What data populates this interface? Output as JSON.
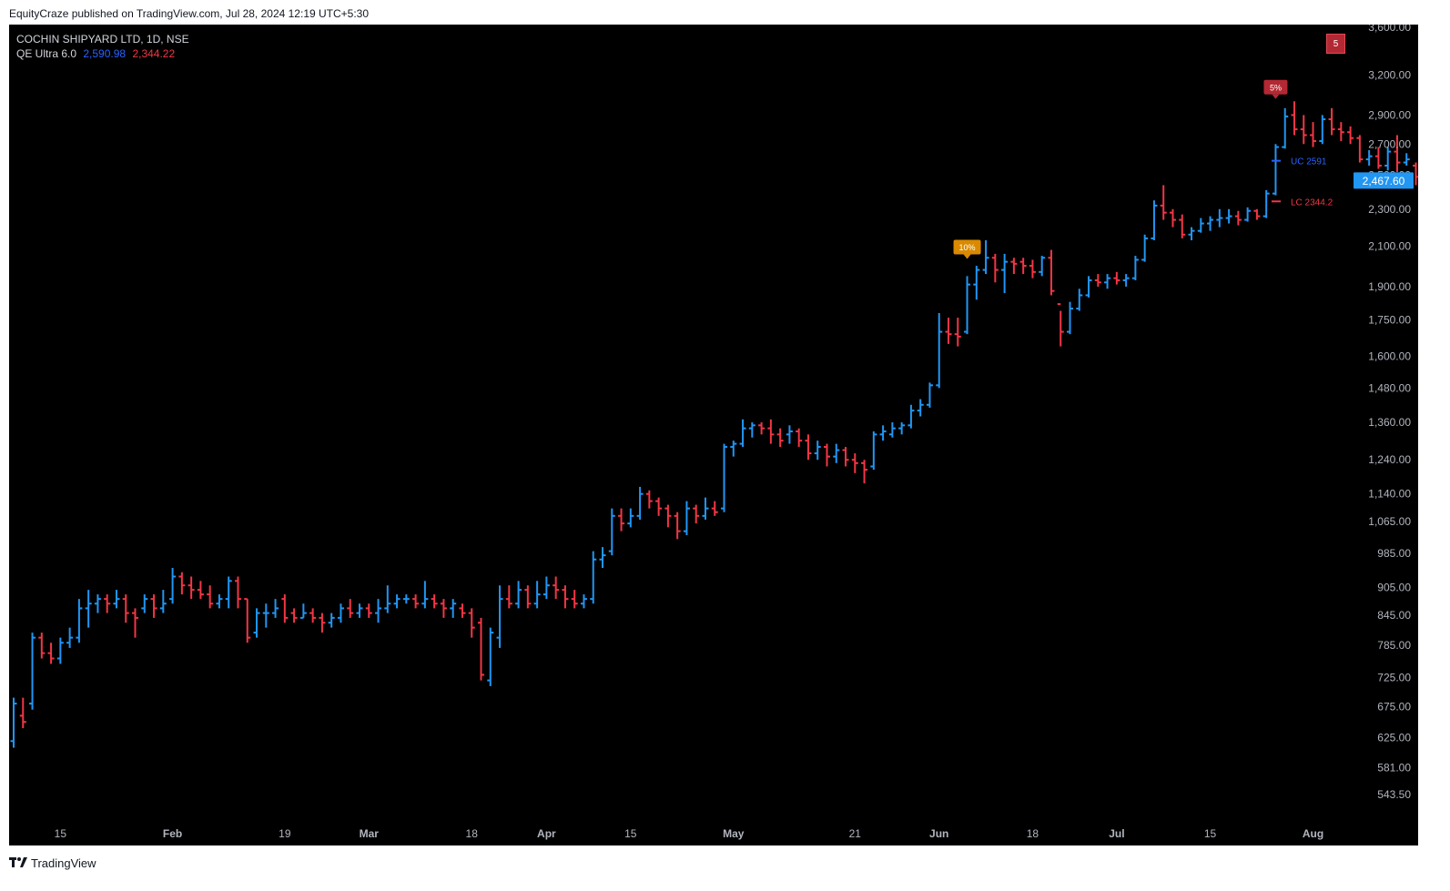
{
  "header": {
    "published_text": "EquityCraze published on TradingView.com, Jul 28, 2024 12:19 UTC+5:30"
  },
  "legend": {
    "symbol_line": "COCHIN SHIPYARD LTD, 1D, NSE",
    "indicator_name": "QE Ultra 6.0",
    "indicator_uc_value": "2,590.98",
    "indicator_lc_value": "2,344.22"
  },
  "alert_badge": "5",
  "footer": {
    "brand": "TradingView"
  },
  "colors": {
    "up": "#2196f3",
    "down": "#f23645",
    "background": "#000000",
    "axis_text": "#b2b5be",
    "last_price_bg": "#2196f3",
    "uc_line": "#2962ff",
    "lc_line": "#f23645",
    "tag_10pct": "#d98a00",
    "tag_5pct": "#b22833"
  },
  "chart_data": {
    "type": "ohlc",
    "title": "COCHIN SHIPYARD LTD, 1D, NSE",
    "y_scale": "log",
    "ylim": [
      520,
      3700
    ],
    "y_ticks": [
      543.5,
      581,
      625,
      675,
      725,
      785,
      845,
      905,
      985,
      1065,
      1140,
      1240,
      1360,
      1480,
      1600,
      1750,
      1900,
      2100,
      2300,
      2500,
      2700,
      2900,
      3200,
      3600
    ],
    "y_tick_labels": [
      "543.50",
      "581.00",
      "625.00",
      "675.00",
      "725.00",
      "785.00",
      "845.00",
      "905.00",
      "985.00",
      "1,065.00",
      "1,140.00",
      "1,240.00",
      "1,360.00",
      "1,480.00",
      "1,600.00",
      "1,750.00",
      "1,900.00",
      "2,100.00",
      "2,300.00",
      "2,500.00",
      "2,700.00",
      "2,900.00",
      "3,200.00",
      "3,600.00"
    ],
    "x_ticks": [
      {
        "bar": 5,
        "label": "15"
      },
      {
        "bar": 17,
        "label": "Feb"
      },
      {
        "bar": 29,
        "label": "19"
      },
      {
        "bar": 38,
        "label": "Mar"
      },
      {
        "bar": 49,
        "label": "18"
      },
      {
        "bar": 57,
        "label": "Apr"
      },
      {
        "bar": 66,
        "label": "15"
      },
      {
        "bar": 77,
        "label": "May"
      },
      {
        "bar": 90,
        "label": "21"
      },
      {
        "bar": 99,
        "label": "Jun"
      },
      {
        "bar": 109,
        "label": "18"
      },
      {
        "bar": 118,
        "label": "Jul"
      },
      {
        "bar": 128,
        "label": "15"
      },
      {
        "bar": 139,
        "label": "Aug"
      }
    ],
    "bars": [
      [
        620,
        690,
        610,
        680
      ],
      [
        660,
        690,
        640,
        650
      ],
      [
        680,
        810,
        670,
        800
      ],
      [
        800,
        810,
        760,
        770
      ],
      [
        770,
        790,
        750,
        760
      ],
      [
        760,
        800,
        750,
        790
      ],
      [
        790,
        820,
        780,
        800
      ],
      [
        800,
        880,
        790,
        860
      ],
      [
        860,
        900,
        820,
        870
      ],
      [
        870,
        890,
        850,
        880
      ],
      [
        880,
        890,
        850,
        870
      ],
      [
        870,
        900,
        860,
        880
      ],
      [
        880,
        890,
        830,
        850
      ],
      [
        850,
        860,
        800,
        840
      ],
      [
        860,
        890,
        850,
        880
      ],
      [
        880,
        890,
        840,
        860
      ],
      [
        860,
        900,
        850,
        870
      ],
      [
        880,
        950,
        870,
        930
      ],
      [
        930,
        940,
        890,
        910
      ],
      [
        910,
        930,
        880,
        900
      ],
      [
        900,
        920,
        880,
        890
      ],
      [
        890,
        910,
        860,
        870
      ],
      [
        870,
        890,
        860,
        880
      ],
      [
        880,
        930,
        860,
        920
      ],
      [
        920,
        930,
        860,
        880
      ],
      [
        880,
        880,
        790,
        800
      ],
      [
        810,
        860,
        800,
        850
      ],
      [
        850,
        870,
        820,
        850
      ],
      [
        850,
        880,
        840,
        860
      ],
      [
        880,
        890,
        830,
        840
      ],
      [
        850,
        860,
        830,
        840
      ],
      [
        840,
        870,
        840,
        850
      ],
      [
        850,
        860,
        830,
        840
      ],
      [
        840,
        850,
        810,
        830
      ],
      [
        830,
        850,
        820,
        840
      ],
      [
        840,
        870,
        830,
        860
      ],
      [
        860,
        880,
        840,
        850
      ],
      [
        850,
        870,
        840,
        860
      ],
      [
        860,
        870,
        840,
        850
      ],
      [
        850,
        880,
        830,
        860
      ],
      [
        860,
        910,
        850,
        870
      ],
      [
        870,
        890,
        860,
        880
      ],
      [
        880,
        890,
        870,
        880
      ],
      [
        880,
        890,
        860,
        870
      ],
      [
        870,
        920,
        860,
        880
      ],
      [
        880,
        890,
        860,
        870
      ],
      [
        870,
        880,
        840,
        860
      ],
      [
        860,
        880,
        840,
        870
      ],
      [
        860,
        870,
        840,
        850
      ],
      [
        850,
        860,
        800,
        820
      ],
      [
        830,
        840,
        720,
        730
      ],
      [
        720,
        820,
        710,
        810
      ],
      [
        800,
        910,
        780,
        880
      ],
      [
        880,
        910,
        860,
        870
      ],
      [
        870,
        920,
        860,
        900
      ],
      [
        900,
        910,
        860,
        870
      ],
      [
        870,
        920,
        860,
        890
      ],
      [
        890,
        930,
        880,
        910
      ],
      [
        910,
        930,
        880,
        900
      ],
      [
        900,
        910,
        860,
        880
      ]
    ],
    "bars_2": [
      [
        880,
        900,
        860,
        870
      ],
      [
        870,
        890,
        860,
        880
      ],
      [
        880,
        990,
        870,
        970
      ],
      [
        970,
        1000,
        950,
        980
      ],
      [
        990,
        1100,
        980,
        1080
      ],
      [
        1080,
        1100,
        1040,
        1060
      ],
      [
        1060,
        1100,
        1050,
        1080
      ],
      [
        1080,
        1160,
        1070,
        1140
      ],
      [
        1140,
        1150,
        1100,
        1120
      ],
      [
        1120,
        1130,
        1080,
        1100
      ],
      [
        1100,
        1110,
        1050,
        1080
      ],
      [
        1080,
        1090,
        1020,
        1040
      ],
      [
        1040,
        1120,
        1030,
        1100
      ],
      [
        1100,
        1110,
        1060,
        1080
      ],
      [
        1080,
        1130,
        1070,
        1100
      ],
      [
        1100,
        1120,
        1080,
        1090
      ],
      [
        1100,
        1290,
        1090,
        1280
      ],
      [
        1280,
        1300,
        1250,
        1290
      ],
      [
        1290,
        1370,
        1280,
        1340
      ],
      [
        1340,
        1360,
        1310,
        1350
      ],
      [
        1350,
        1360,
        1320,
        1340
      ],
      [
        1340,
        1370,
        1290,
        1320
      ],
      [
        1320,
        1340,
        1280,
        1300
      ],
      [
        1320,
        1350,
        1290,
        1330
      ],
      [
        1330,
        1340,
        1280,
        1300
      ],
      [
        1300,
        1320,
        1240,
        1260
      ],
      [
        1260,
        1300,
        1240,
        1280
      ],
      [
        1280,
        1290,
        1220,
        1250
      ],
      [
        1250,
        1290,
        1230,
        1270
      ],
      [
        1270,
        1280,
        1220,
        1240
      ],
      [
        1240,
        1260,
        1200,
        1230
      ],
      [
        1230,
        1240,
        1170,
        1210
      ],
      [
        1220,
        1330,
        1210,
        1320
      ],
      [
        1320,
        1350,
        1300,
        1330
      ],
      [
        1320,
        1360,
        1310,
        1340
      ],
      [
        1340,
        1360,
        1320,
        1350
      ],
      [
        1350,
        1420,
        1340,
        1400
      ],
      [
        1400,
        1440,
        1380,
        1420
      ],
      [
        1420,
        1500,
        1410,
        1490
      ],
      [
        1490,
        1780,
        1480,
        1700
      ],
      [
        1700,
        1760,
        1650,
        1690
      ],
      [
        1690,
        1760,
        1640,
        1680
      ],
      [
        1700,
        1950,
        1690,
        1910
      ],
      [
        1910,
        2000,
        1840,
        1980
      ],
      [
        1980,
        2130,
        1960,
        2040
      ],
      [
        2040,
        2060,
        1920,
        1980
      ],
      [
        1980,
        2060,
        1870,
        2020
      ],
      [
        2020,
        2040,
        1960,
        2010
      ],
      [
        2020,
        2040,
        1960,
        2000
      ],
      [
        2000,
        2030,
        1940,
        1970
      ],
      [
        1970,
        2050,
        1950,
        2040
      ],
      [
        2040,
        2080,
        1860,
        1880
      ],
      [
        1820,
        1790,
        1640,
        1700
      ],
      [
        1700,
        1830,
        1690,
        1800
      ],
      [
        1800,
        1890,
        1790,
        1860
      ],
      [
        1860,
        1950,
        1850,
        1930
      ],
      [
        1930,
        1960,
        1900,
        1920
      ],
      [
        1920,
        1960,
        1890,
        1940
      ],
      [
        1940,
        1970,
        1910,
        1930
      ],
      [
        1930,
        1960,
        1900,
        1940
      ]
    ],
    "bars_3": [
      [
        1940,
        2050,
        1930,
        2030
      ],
      [
        2030,
        2160,
        2020,
        2140
      ],
      [
        2140,
        2350,
        2130,
        2320
      ],
      [
        2320,
        2440,
        2240,
        2280
      ],
      [
        2280,
        2300,
        2200,
        2240
      ],
      [
        2240,
        2270,
        2140,
        2160
      ],
      [
        2160,
        2200,
        2130,
        2180
      ],
      [
        2180,
        2250,
        2170,
        2220
      ],
      [
        2220,
        2260,
        2180,
        2240
      ],
      [
        2240,
        2300,
        2200,
        2250
      ],
      [
        2250,
        2300,
        2220,
        2260
      ],
      [
        2260,
        2290,
        2210,
        2240
      ],
      [
        2240,
        2310,
        2230,
        2290
      ],
      [
        2290,
        2300,
        2240,
        2260
      ],
      [
        2260,
        2410,
        2250,
        2390
      ],
      [
        2390,
        2700,
        2380,
        2680
      ],
      [
        2680,
        2950,
        2670,
        2890
      ],
      [
        2900,
        3000,
        2760,
        2800
      ],
      [
        2800,
        2900,
        2700,
        2760
      ],
      [
        2760,
        2850,
        2680,
        2720
      ],
      [
        2720,
        2900,
        2700,
        2870
      ],
      [
        2870,
        2950,
        2760,
        2800
      ],
      [
        2800,
        2850,
        2720,
        2780
      ],
      [
        2780,
        2820,
        2700,
        2740
      ],
      [
        2740,
        2760,
        2580,
        2600
      ],
      [
        2600,
        2660,
        2560,
        2620
      ],
      [
        2620,
        2680,
        2540,
        2560
      ],
      [
        2560,
        2680,
        2530,
        2650
      ],
      [
        2650,
        2760,
        2520,
        2580
      ],
      [
        2580,
        2640,
        2560,
        2600
      ],
      [
        2560,
        2580,
        2440,
        2490
      ],
      [
        2480,
        2530,
        2450,
        2468
      ]
    ],
    "upper_channel": {
      "label": "UC 2591",
      "value": 2591
    },
    "lower_channel": {
      "label": "LC 2344.2",
      "value": 2344.2
    },
    "last_price": {
      "value": 2467.6,
      "label": "2,467.60"
    },
    "annotations": [
      {
        "text": "10%",
        "bar": 102,
        "price": 2030,
        "color": "#d98a00"
      },
      {
        "text": "5%",
        "bar": 135,
        "price": 3010,
        "color": "#b22833"
      }
    ]
  }
}
